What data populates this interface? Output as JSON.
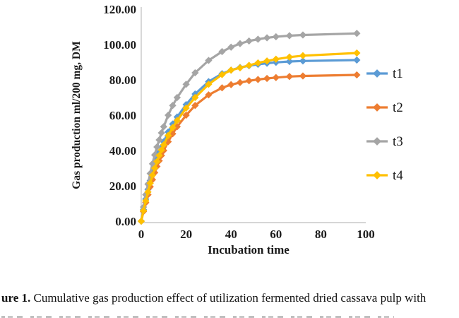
{
  "figure": {
    "caption_prefix": "ure 1.",
    "caption_text": " Cumulative gas production effect of utilization fermented dried cassava pulp with"
  },
  "chart_data": {
    "type": "line",
    "title": "",
    "xlabel": "Incubation time",
    "ylabel": "Gas production ml/200 mg,  DM",
    "xlim": [
      0,
      100
    ],
    "ylim": [
      0,
      120
    ],
    "grid": false,
    "legend_position": "right",
    "marker": "diamond",
    "axis_line_color": "#c8c8c8",
    "x_ticks": [
      {
        "label": "0",
        "value": 0
      },
      {
        "label": "20",
        "value": 20
      },
      {
        "label": "40",
        "value": 40
      },
      {
        "label": "60",
        "value": 60
      },
      {
        "label": "80",
        "value": 80
      },
      {
        "label": "100",
        "value": 100
      }
    ],
    "y_ticks": [
      {
        "label": "0.00",
        "value": 0
      },
      {
        "label": "20.00",
        "value": 20
      },
      {
        "label": "40.00",
        "value": 40
      },
      {
        "label": "60.00",
        "value": 60
      },
      {
        "label": "80.00",
        "value": 80
      },
      {
        "label": "100.00",
        "value": 100
      },
      {
        "label": "120.00",
        "value": 120
      }
    ],
    "x": [
      0,
      1,
      2,
      3,
      4,
      5,
      6,
      7,
      8,
      9,
      10,
      12,
      14,
      16,
      20,
      24,
      30,
      36,
      40,
      44,
      48,
      52,
      56,
      60,
      66,
      72,
      96
    ],
    "series": [
      {
        "name": "t1",
        "color": "#5B9BD5",
        "values": [
          0,
          6.5,
          12.5,
          18,
          23,
          27.5,
          31.5,
          35.5,
          39,
          42,
          45,
          50.5,
          55,
          59,
          66,
          72,
          79,
          83.5,
          85.5,
          87,
          88,
          88.8,
          89.4,
          89.9,
          90.4,
          90.7,
          91.2
        ]
      },
      {
        "name": "t2",
        "color": "#ED7D31",
        "values": [
          0,
          5.5,
          10.5,
          15,
          19.5,
          23.5,
          27.5,
          31,
          34.2,
          37.2,
          40,
          45,
          49.5,
          53.5,
          60,
          65.5,
          71.5,
          75.5,
          77.3,
          78.5,
          79.5,
          80.2,
          80.8,
          81.3,
          81.9,
          82.2,
          82.8
        ]
      },
      {
        "name": "t3",
        "color": "#A5A5A5",
        "values": [
          0,
          8,
          15,
          21,
          27,
          32.5,
          37.5,
          42,
          46,
          50,
          53.5,
          60,
          65.5,
          70,
          77.5,
          84,
          91,
          96,
          98.5,
          100.5,
          102,
          103,
          103.8,
          104.4,
          105,
          105.4,
          106.3
        ]
      },
      {
        "name": "t4",
        "color": "#FFC000",
        "values": [
          0,
          6,
          11.5,
          16.5,
          21.5,
          26,
          30,
          33.8,
          37.2,
          40.3,
          43.2,
          48.5,
          53,
          57,
          64,
          70,
          77.5,
          83,
          85.5,
          86.8,
          88.2,
          89.6,
          90.7,
          91.7,
          92.9,
          93.7,
          95.2
        ]
      }
    ]
  }
}
